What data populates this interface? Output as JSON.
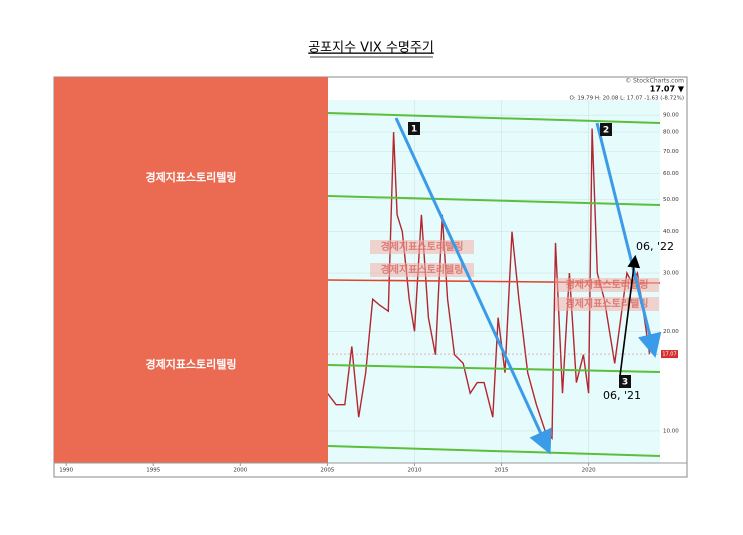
{
  "page": {
    "title": "공포지수 VIX 수명주기",
    "panel_text": "경제지표스토리텔링"
  },
  "chart_data": {
    "type": "line",
    "log": true,
    "grid": true,
    "source": "© StockCharts.com",
    "last": "17.07 ▼",
    "quote": "O: 19.79   H: 20.08   L: 17.07   -1.63 (-8.72%)",
    "annotations": [
      "1",
      "2",
      "3",
      "06, '22",
      "06, '21"
    ],
    "x": [
      2005.0,
      2005.5,
      2006.0,
      2006.4,
      2006.8,
      2007.2,
      2007.6,
      2008.0,
      2008.5,
      2008.8,
      2009.0,
      2009.3,
      2009.7,
      2010.0,
      2010.4,
      2010.8,
      2011.2,
      2011.6,
      2011.9,
      2012.3,
      2012.8,
      2013.2,
      2013.6,
      2014.0,
      2014.5,
      2014.8,
      2015.2,
      2015.6,
      2016.0,
      2016.5,
      2017.0,
      2017.5,
      2017.9,
      2018.1,
      2018.5,
      2018.9,
      2019.3,
      2019.7,
      2020.0,
      2020.2,
      2020.5,
      2020.9,
      2021.2,
      2021.5,
      2022.2,
      2022.5,
      2022.8,
      2023.2,
      2023.5
    ],
    "values": [
      13,
      12,
      12,
      18,
      11,
      15,
      25,
      24,
      23,
      80,
      45,
      40,
      25,
      20,
      45,
      22,
      17,
      45,
      25,
      17,
      16,
      13,
      14,
      14,
      11,
      22,
      15,
      40,
      25,
      15,
      12,
      10,
      9.5,
      37,
      13,
      30,
      14,
      17,
      13,
      82,
      30,
      25,
      20,
      16,
      30,
      28,
      30,
      22,
      17.07
    ],
    "color": "#b3262f",
    "xlim": [
      1989.3,
      2024.1
    ],
    "xticks": [
      1990,
      1995,
      2000,
      2005,
      2010,
      2015,
      2020
    ],
    "ylim": [
      8,
      100
    ],
    "yticks": [
      {
        "value": 10,
        "label": "10.00"
      },
      {
        "value": 20,
        "label": "20.00"
      },
      {
        "value": 30,
        "label": "30.00"
      },
      {
        "value": 40,
        "label": "40.00"
      },
      {
        "value": 50,
        "label": "50.00"
      },
      {
        "value": 60,
        "label": "60.00"
      },
      {
        "value": 70,
        "label": "70.00"
      },
      {
        "value": 80,
        "label": "80.00"
      },
      {
        "value": 90,
        "label": "90.00"
      }
    ]
  }
}
